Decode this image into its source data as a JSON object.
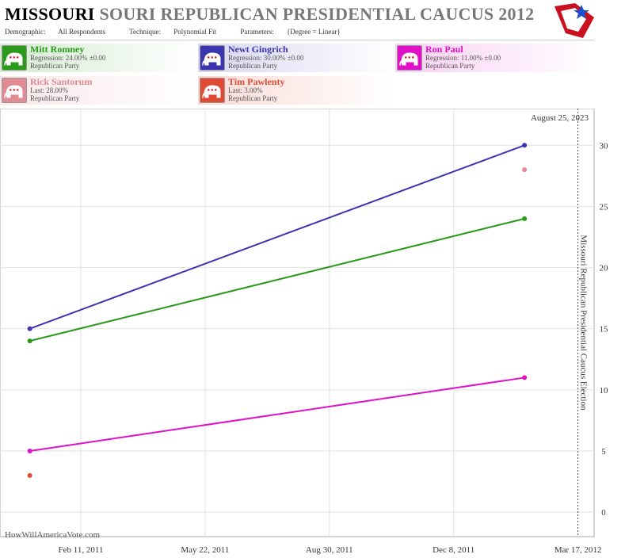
{
  "header": {
    "title_state": "MISSOURI",
    "title_rest": "SOURI REPUBLICAN PRESIDENTIAL CAUCUS 2012",
    "demographic_label": "Demographic:",
    "demographic_value": "All Respondents",
    "technique_label": "Technique:",
    "technique_value": "Polynomial Fit",
    "parameters_label": "Parameters:",
    "parameters_value": "{Degree = Linear}"
  },
  "candidates": [
    {
      "name": "Mitt Romney",
      "line1": "Regression: 24.00% ±0.00",
      "line2": "Republican Party",
      "color": "#2a9a1a"
    },
    {
      "name": "Newt Gingrich",
      "line1": "Regression: 30.00% ±0.00",
      "line2": "Republican Party",
      "color": "#3b35b0"
    },
    {
      "name": "Ron Paul",
      "line1": "Regression: 11.00% ±0.00",
      "line2": "Republican Party",
      "color": "#e010c8"
    },
    {
      "name": "Rick Santorum",
      "line1": "Last: 28.00%",
      "line2": "Republican Party",
      "color": "#e08a94"
    },
    {
      "name": "Tim Pawlenty",
      "line1": "Last: 3.00%",
      "line2": "Republican Party",
      "color": "#e04a32"
    }
  ],
  "date_label": "August 25, 2023",
  "watermark": "HowWillAmericaVote.com",
  "chart_data": {
    "type": "line",
    "ylim": [
      -2,
      33
    ],
    "y_ticks": [
      0,
      5,
      10,
      15,
      20,
      25,
      30
    ],
    "x_range": [
      "2010-12-08",
      "2012-03-30"
    ],
    "x_ticks": [
      "Feb 11, 2011",
      "May 22, 2011",
      "Aug 30, 2011",
      "Dec 8, 2011",
      "Mar 17, 2012"
    ],
    "x_tick_dates": [
      "2011-02-11",
      "2011-05-22",
      "2011-08-30",
      "2011-12-08",
      "2012-03-17"
    ],
    "election_date": "2012-03-17",
    "election_label": "Missouri Republican Presidential Caucus Election",
    "series": [
      {
        "name": "Newt Gingrich",
        "color": "#3b35b0",
        "x": [
          "2011-01-01",
          "2012-02-03"
        ],
        "y": [
          15,
          30
        ]
      },
      {
        "name": "Mitt Romney",
        "color": "#2a9a1a",
        "x": [
          "2011-01-01",
          "2012-02-03"
        ],
        "y": [
          14,
          24
        ]
      },
      {
        "name": "Ron Paul",
        "color": "#e010c8",
        "x": [
          "2011-01-01",
          "2012-02-03"
        ],
        "y": [
          5,
          11
        ]
      }
    ],
    "points": [
      {
        "name": "Rick Santorum",
        "color": "#e08a94",
        "x": "2012-02-03",
        "y": 28
      },
      {
        "name": "Tim Pawlenty",
        "color": "#e04a32",
        "x": "2011-01-01",
        "y": 3
      }
    ]
  }
}
